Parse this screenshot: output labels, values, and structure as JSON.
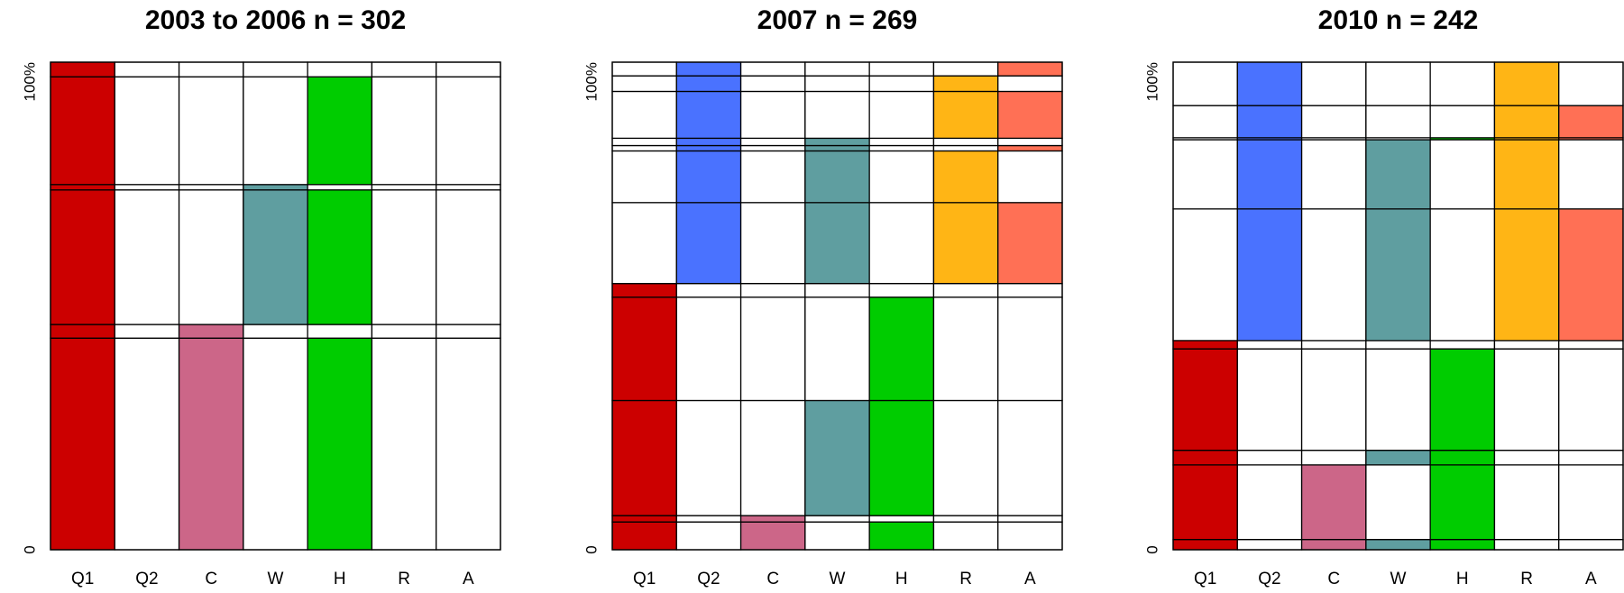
{
  "chart_data": [
    {
      "type": "mosaic",
      "title": "2003 to 2006 n = 302",
      "categories": [
        "Q1",
        "Q2",
        "C",
        "W",
        "H",
        "R",
        "A"
      ],
      "colors": [
        "#cc0000",
        "#4a72ff",
        "#cc6688",
        "#5f9ea0",
        "#00cc00",
        "#ffb515",
        "#ff7055"
      ],
      "ylim": [
        0,
        100
      ],
      "yticks": [
        0,
        {
          "value": 100,
          "label": "100%"
        }
      ],
      "rows": [
        {
          "value": 43.4,
          "present": [
            1,
            0,
            1,
            0,
            1,
            0,
            0
          ]
        },
        {
          "value": 2.8,
          "present": [
            1,
            0,
            1,
            0,
            0,
            0,
            0
          ]
        },
        {
          "value": 27.6,
          "present": [
            1,
            0,
            0,
            1,
            1,
            0,
            0
          ]
        },
        {
          "value": 1.1,
          "present": [
            1,
            0,
            0,
            1,
            0,
            0,
            0
          ]
        },
        {
          "value": 22.1,
          "present": [
            1,
            0,
            0,
            0,
            1,
            0,
            0
          ]
        },
        {
          "value": 3.0,
          "present": [
            1,
            0,
            0,
            0,
            0,
            0,
            0
          ]
        }
      ]
    },
    {
      "type": "mosaic",
      "title": "2007 n = 269",
      "categories": [
        "Q1",
        "Q2",
        "C",
        "W",
        "H",
        "R",
        "A"
      ],
      "colors": [
        "#cc0000",
        "#4a72ff",
        "#cc6688",
        "#5f9ea0",
        "#00cc00",
        "#ffb515",
        "#ff7055"
      ],
      "ylim": [
        0,
        100
      ],
      "yticks": [
        0,
        {
          "value": 100,
          "label": "100%"
        }
      ],
      "rows": [
        {
          "value": 5.7,
          "present": [
            1,
            0,
            1,
            0,
            1,
            0,
            0
          ]
        },
        {
          "value": 1.3,
          "present": [
            1,
            0,
            1,
            0,
            0,
            0,
            0
          ]
        },
        {
          "value": 23.6,
          "present": [
            1,
            0,
            0,
            1,
            1,
            0,
            0
          ]
        },
        {
          "value": 21.2,
          "present": [
            1,
            0,
            0,
            0,
            1,
            0,
            0
          ]
        },
        {
          "value": 2.8,
          "present": [
            1,
            0,
            0,
            0,
            0,
            0,
            0
          ]
        },
        {
          "value": 16.6,
          "present": [
            0,
            1,
            0,
            1,
            0,
            1,
            1
          ]
        },
        {
          "value": 10.6,
          "present": [
            0,
            1,
            0,
            1,
            0,
            1,
            0
          ]
        },
        {
          "value": 1.1,
          "present": [
            0,
            1,
            0,
            1,
            0,
            0,
            1
          ]
        },
        {
          "value": 1.5,
          "present": [
            0,
            1,
            0,
            1,
            0,
            0,
            0
          ]
        },
        {
          "value": 9.6,
          "present": [
            0,
            1,
            0,
            0,
            0,
            1,
            1
          ]
        },
        {
          "value": 3.2,
          "present": [
            0,
            1,
            0,
            0,
            0,
            1,
            0
          ]
        },
        {
          "value": 2.8,
          "present": [
            0,
            1,
            0,
            0,
            0,
            0,
            1
          ]
        }
      ]
    },
    {
      "type": "mosaic",
      "title": "2010 n = 242",
      "categories": [
        "Q1",
        "Q2",
        "C",
        "W",
        "H",
        "R",
        "A"
      ],
      "colors": [
        "#cc0000",
        "#4a72ff",
        "#cc6688",
        "#5f9ea0",
        "#00cc00",
        "#ffb515",
        "#ff7055"
      ],
      "ylim": [
        0,
        100
      ],
      "yticks": [
        0,
        {
          "value": 100,
          "label": "100%"
        }
      ],
      "rows": [
        {
          "value": 2.1,
          "present": [
            1,
            0,
            1,
            1,
            1,
            0,
            0
          ]
        },
        {
          "value": 15.3,
          "present": [
            1,
            0,
            1,
            0,
            1,
            0,
            0
          ]
        },
        {
          "value": 3.0,
          "present": [
            1,
            0,
            0,
            1,
            1,
            0,
            0
          ]
        },
        {
          "value": 20.8,
          "present": [
            1,
            0,
            0,
            0,
            1,
            0,
            0
          ]
        },
        {
          "value": 1.7,
          "present": [
            1,
            0,
            0,
            0,
            0,
            0,
            0
          ]
        },
        {
          "value": 27.0,
          "present": [
            0,
            1,
            0,
            1,
            0,
            1,
            1
          ]
        },
        {
          "value": 14.2,
          "present": [
            0,
            1,
            0,
            1,
            0,
            1,
            0
          ]
        },
        {
          "value": 0.4,
          "present": [
            0,
            1,
            0,
            0,
            1,
            1,
            1
          ]
        },
        {
          "value": 6.6,
          "present": [
            0,
            1,
            0,
            0,
            0,
            1,
            1
          ]
        },
        {
          "value": 8.9,
          "present": [
            0,
            1,
            0,
            0,
            0,
            1,
            0
          ]
        }
      ]
    }
  ]
}
